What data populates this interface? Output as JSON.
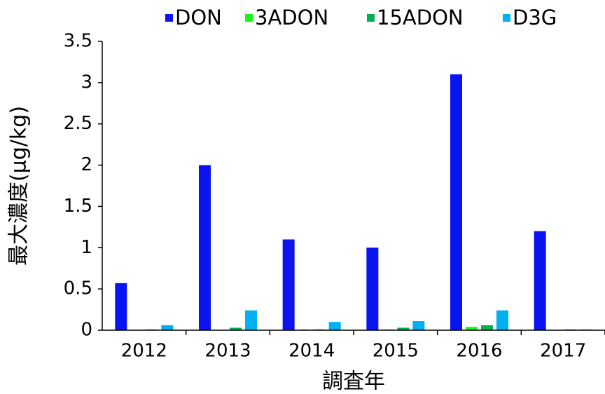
{
  "chart_data": {
    "type": "bar",
    "categories": [
      "2012",
      "2013",
      "2014",
      "2015",
      "2016",
      "2017"
    ],
    "series": [
      {
        "name": "DON",
        "color": "#0a14f0",
        "values": [
          0.57,
          2.0,
          1.1,
          1.0,
          3.1,
          1.2
        ]
      },
      {
        "name": "3ADON",
        "color": "#1ef01e",
        "values": [
          0,
          0,
          0.01,
          0.01,
          0.04,
          0
        ]
      },
      {
        "name": "15ADON",
        "color": "#00b050",
        "values": [
          0.01,
          0.03,
          0.01,
          0.03,
          0.06,
          0.01
        ]
      },
      {
        "name": "D3G",
        "color": "#00b0f0",
        "values": [
          0.06,
          0.24,
          0.1,
          0.11,
          0.24,
          0.01
        ]
      }
    ],
    "ylim": [
      0,
      3.5
    ],
    "yticks": [
      0,
      0.5,
      1,
      1.5,
      2,
      2.5,
      3,
      3.5
    ],
    "y_label": "最大濃度(μg/kg)",
    "x_label": "調査年",
    "legend": "top"
  }
}
